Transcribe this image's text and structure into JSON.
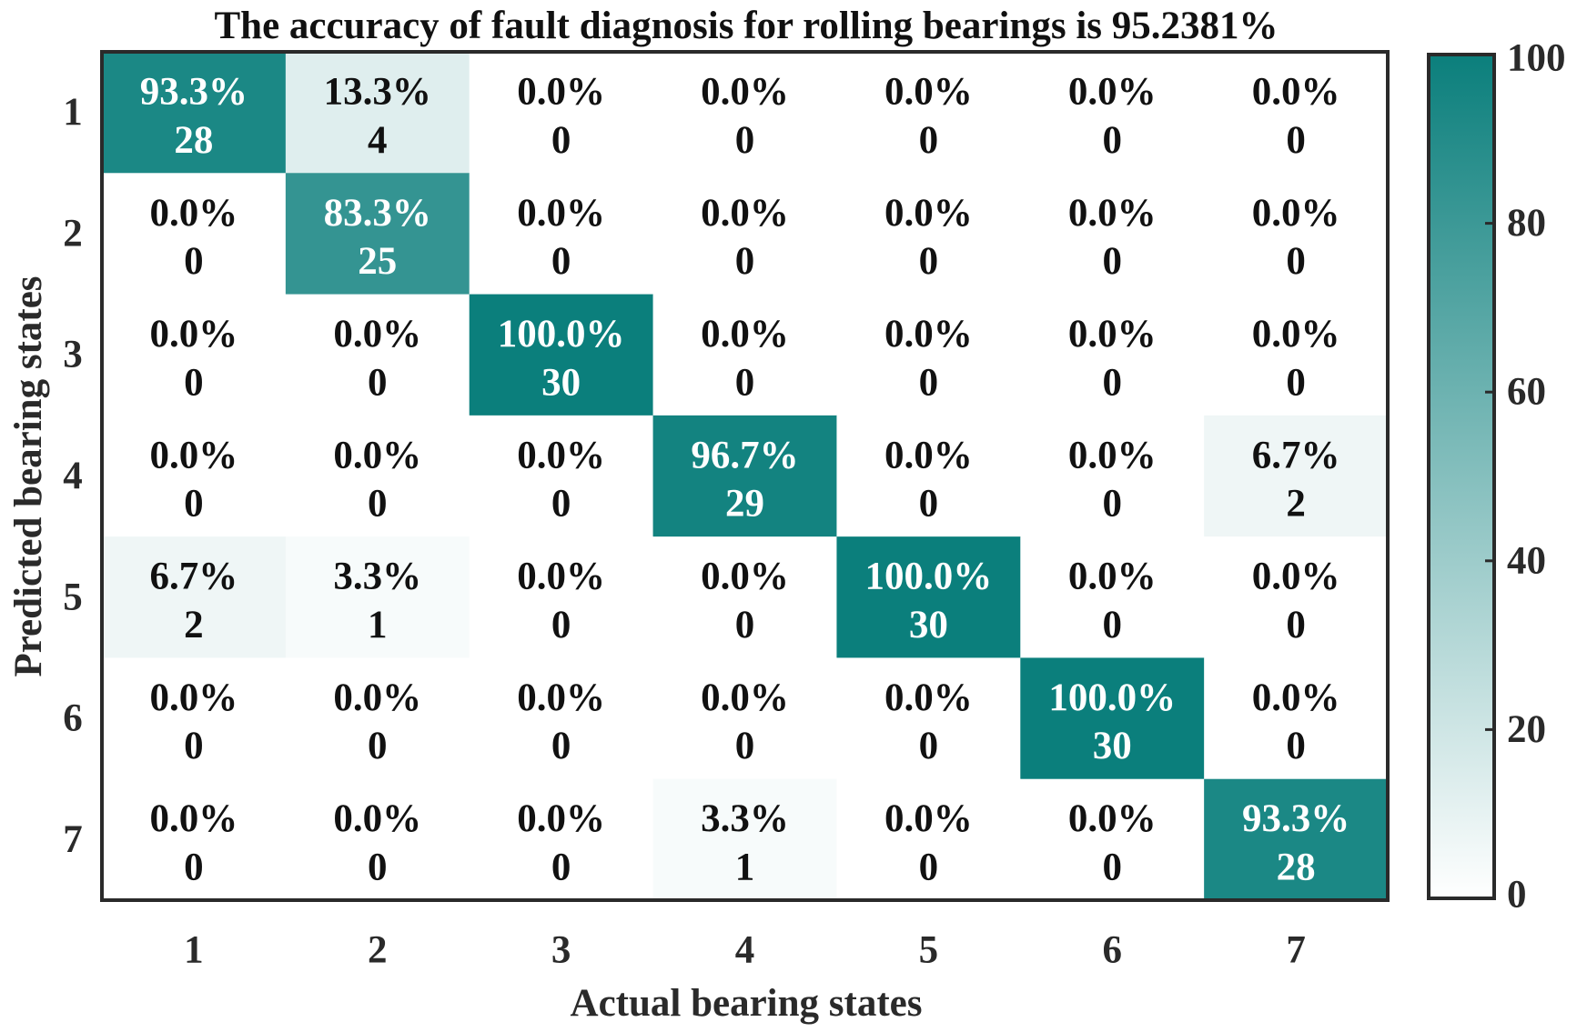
{
  "chart_data": {
    "type": "heatmap",
    "title": "The accuracy of fault diagnosis for rolling bearings is 95.2381%",
    "xlabel": "Actual bearing states",
    "ylabel": "Predicted bearing states",
    "x_categories": [
      "1",
      "2",
      "3",
      "4",
      "5",
      "6",
      "7"
    ],
    "y_categories": [
      "1",
      "2",
      "3",
      "4",
      "5",
      "6",
      "7"
    ],
    "counts": [
      [
        28,
        4,
        0,
        0,
        0,
        0,
        0
      ],
      [
        0,
        25,
        0,
        0,
        0,
        0,
        0
      ],
      [
        0,
        0,
        30,
        0,
        0,
        0,
        0
      ],
      [
        0,
        0,
        0,
        29,
        0,
        0,
        2
      ],
      [
        2,
        1,
        0,
        0,
        30,
        0,
        0
      ],
      [
        0,
        0,
        0,
        0,
        0,
        30,
        0
      ],
      [
        0,
        0,
        0,
        1,
        0,
        0,
        28
      ]
    ],
    "percent_labels": [
      [
        "93.3%",
        "13.3%",
        "0.0%",
        "0.0%",
        "0.0%",
        "0.0%",
        "0.0%"
      ],
      [
        "0.0%",
        "83.3%",
        "0.0%",
        "0.0%",
        "0.0%",
        "0.0%",
        "0.0%"
      ],
      [
        "0.0%",
        "0.0%",
        "100.0%",
        "0.0%",
        "0.0%",
        "0.0%",
        "0.0%"
      ],
      [
        "0.0%",
        "0.0%",
        "0.0%",
        "96.7%",
        "0.0%",
        "0.0%",
        "6.7%"
      ],
      [
        "6.7%",
        "3.3%",
        "0.0%",
        "0.0%",
        "100.0%",
        "0.0%",
        "0.0%"
      ],
      [
        "0.0%",
        "0.0%",
        "0.0%",
        "0.0%",
        "0.0%",
        "100.0%",
        "0.0%"
      ],
      [
        "0.0%",
        "0.0%",
        "0.0%",
        "3.3%",
        "0.0%",
        "0.0%",
        "93.3%"
      ]
    ],
    "percent_values": [
      [
        93.3,
        13.3,
        0,
        0,
        0,
        0,
        0
      ],
      [
        0,
        83.3,
        0,
        0,
        0,
        0,
        0
      ],
      [
        0,
        0,
        100,
        0,
        0,
        0,
        0
      ],
      [
        0,
        0,
        0,
        96.7,
        0,
        0,
        6.7
      ],
      [
        6.7,
        3.3,
        0,
        0,
        100,
        0,
        0
      ],
      [
        0,
        0,
        0,
        0,
        0,
        100,
        0
      ],
      [
        0,
        0,
        0,
        3.3,
        0,
        0,
        93.3
      ]
    ],
    "colorbar": {
      "range": [
        0,
        100
      ],
      "ticks": [
        "0",
        "20",
        "40",
        "60",
        "80",
        "100"
      ],
      "low_color": "#ffffff",
      "high_color": "#0b7f7c"
    },
    "grid": false
  }
}
